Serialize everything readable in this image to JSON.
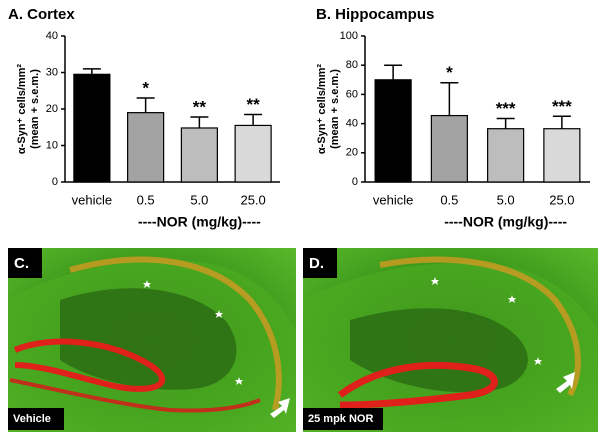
{
  "chart_data": [
    {
      "type": "bar",
      "title": "A. Cortex",
      "y_label": [
        "α-Syn⁺ cells/mm²",
        "(mean + s.e.m.)"
      ],
      "x_label": "----NOR (mg/kg)----",
      "categories": [
        "vehicle",
        "0.5",
        "5.0",
        "25.0"
      ],
      "values": [
        29.5,
        19,
        14.8,
        15.5
      ],
      "errors": [
        1.5,
        4,
        3,
        3
      ],
      "annotations": [
        null,
        "*",
        "**",
        "**"
      ],
      "colors": [
        "#000000",
        "#a3a3a3",
        "#bdbdbd",
        "#d9d9d9"
      ],
      "ylim": [
        0,
        40
      ],
      "yticks": [
        0,
        10,
        20,
        30,
        40
      ]
    },
    {
      "type": "bar",
      "title": "B. Hippocampus",
      "y_label": [
        "α-Syn⁺ cells/mm²",
        "(mean + s.e.m.)"
      ],
      "x_label": "----NOR (mg/kg)----",
      "categories": [
        "vehicle",
        "0.5",
        "5.0",
        "25.0"
      ],
      "values": [
        70,
        45.5,
        36.5,
        36.5
      ],
      "errors": [
        10,
        22.5,
        7,
        8.5
      ],
      "annotations": [
        null,
        "*",
        "***",
        "***"
      ],
      "colors": [
        "#000000",
        "#a3a3a3",
        "#bdbdbd",
        "#d9d9d9"
      ],
      "ylim": [
        0,
        100
      ],
      "yticks": [
        0,
        20,
        40,
        60,
        80,
        100
      ]
    }
  ],
  "images": [
    {
      "label": "C.",
      "caption": "Vehicle"
    },
    {
      "label": "D.",
      "caption": "25 mpk NOR"
    }
  ]
}
